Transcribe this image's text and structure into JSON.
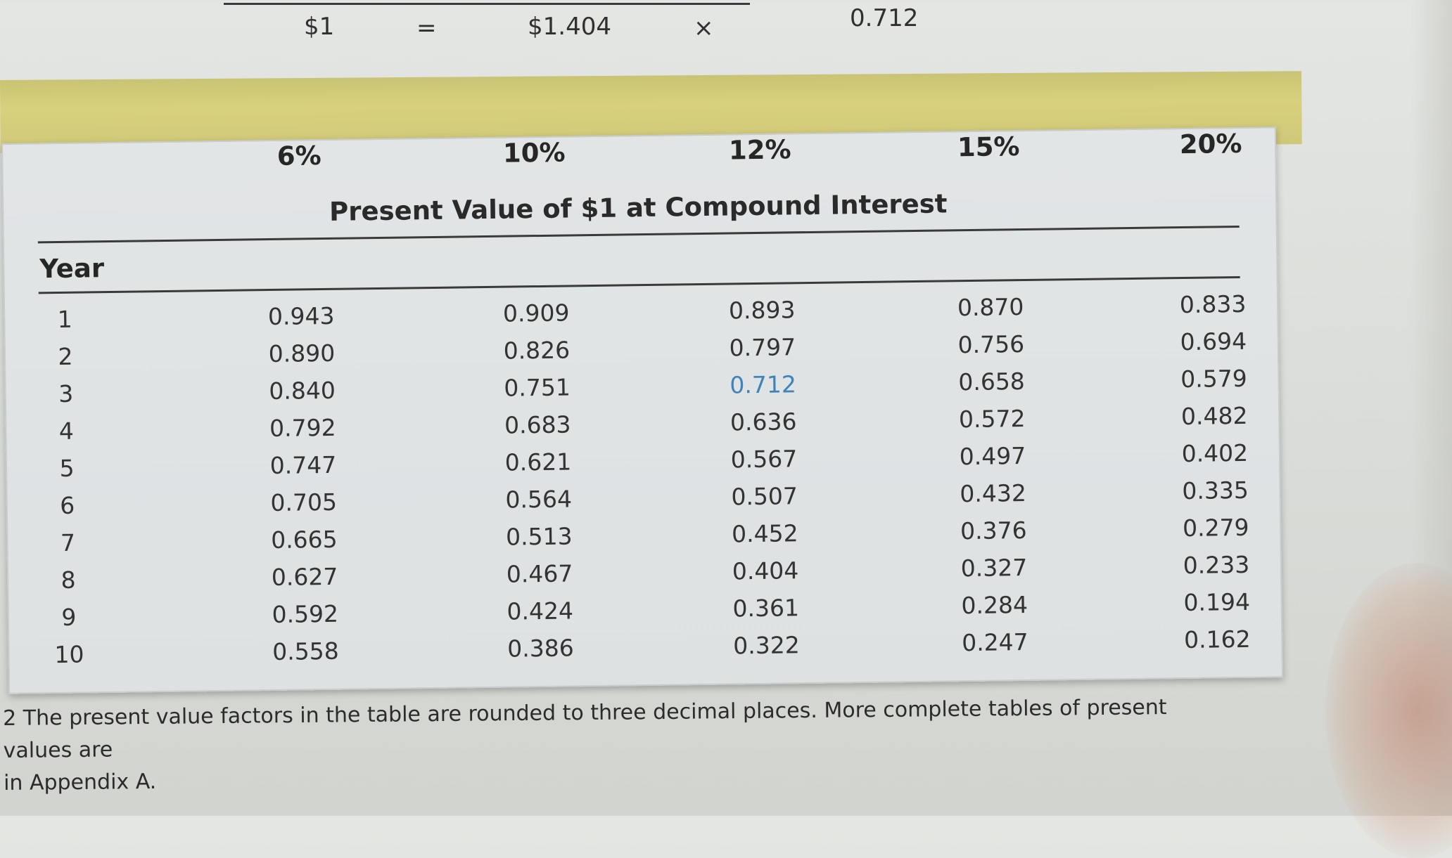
{
  "equation": {
    "present_value": "$1",
    "equals": "=",
    "future_value": "$1.404",
    "times": "×",
    "factor": "0.712"
  },
  "table": {
    "title": "Present Value of $1 at Compound Interest",
    "headers": [
      "Year",
      "6%",
      "10%",
      "12%",
      "15%",
      "20%"
    ],
    "rows": [
      [
        "1",
        "0.943",
        "0.909",
        "0.893",
        "0.870",
        "0.833"
      ],
      [
        "2",
        "0.890",
        "0.826",
        "0.797",
        "0.756",
        "0.694"
      ],
      [
        "3",
        "0.840",
        "0.751",
        "0.712",
        "0.658",
        "0.579"
      ],
      [
        "4",
        "0.792",
        "0.683",
        "0.636",
        "0.572",
        "0.482"
      ],
      [
        "5",
        "0.747",
        "0.621",
        "0.567",
        "0.497",
        "0.402"
      ],
      [
        "6",
        "0.705",
        "0.564",
        "0.507",
        "0.432",
        "0.335"
      ],
      [
        "7",
        "0.665",
        "0.513",
        "0.452",
        "0.376",
        "0.279"
      ],
      [
        "8",
        "0.627",
        "0.467",
        "0.404",
        "0.327",
        "0.233"
      ],
      [
        "9",
        "0.592",
        "0.424",
        "0.361",
        "0.284",
        "0.194"
      ],
      [
        "10",
        "0.558",
        "0.386",
        "0.322",
        "0.247",
        "0.162"
      ]
    ],
    "highlight_color": "#3f84b9"
  },
  "footnote": {
    "line1": "2 The present value factors in the table are rounded to three decimal places. More complete tables of present values are",
    "line2": "in Appendix A."
  }
}
